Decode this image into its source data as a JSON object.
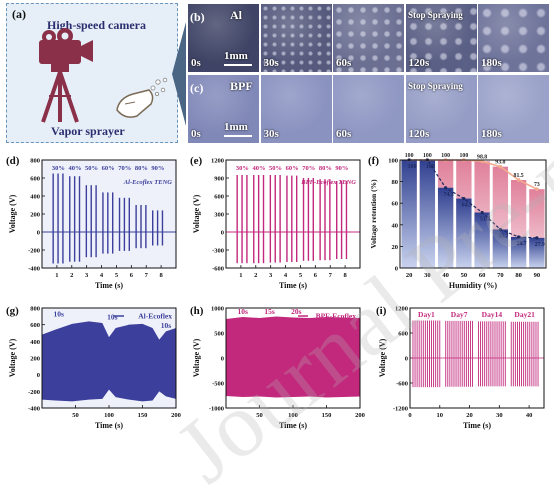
{
  "panel_a": {
    "letter": "(a)",
    "camera_label": "High-speed camera",
    "sprayer_label": "Vapor sprayer"
  },
  "panel_b": {
    "letter": "(b)",
    "material": "Al",
    "scale": "1mm",
    "stop_label": "Stop Spraying",
    "times": [
      "0s",
      "30s",
      "60s",
      "120s",
      "180s"
    ]
  },
  "panel_c": {
    "letter": "(c)",
    "material": "BPF",
    "scale": "1mm",
    "stop_label": "Stop Spraying",
    "times": [
      "0s",
      "30s",
      "60s",
      "120s",
      "180s"
    ]
  },
  "colors": {
    "blue": "#3c3f9b",
    "magenta": "#c2287c",
    "bar_red": "#d8708c",
    "retention_line": "#f3a98d"
  },
  "chart_data": [
    {
      "id": "d",
      "letter": "(d)",
      "type": "line",
      "legend": "Al-Ecoflex TENG",
      "xlabel": "Time (s)",
      "ylabel": "Voltage (V)",
      "xlim": [
        0,
        9
      ],
      "ylim": [
        -400,
        800
      ],
      "xticks": [
        "1",
        "2",
        "3",
        "4",
        "5",
        "6",
        "7",
        "8"
      ],
      "yticks": [
        "800",
        "600",
        "400",
        "200",
        "0",
        "-200",
        "-400"
      ],
      "humidity_labels": [
        "30%",
        "40%",
        "50%",
        "60%",
        "70%",
        "80%",
        "90%"
      ],
      "group_peaks": [
        650,
        620,
        520,
        440,
        380,
        300,
        240
      ],
      "group_troughs": [
        -350,
        -330,
        -280,
        -240,
        -210,
        -180,
        -150
      ]
    },
    {
      "id": "e",
      "letter": "(e)",
      "type": "line",
      "legend": "BPF-Ecoflex TENG",
      "xlabel": "Time (s)",
      "ylabel": "Voltage (V)",
      "xlim": [
        0,
        9
      ],
      "ylim": [
        -600,
        1200
      ],
      "xticks": [
        "1",
        "2",
        "3",
        "4",
        "5",
        "6",
        "7",
        "8"
      ],
      "yticks": [
        "1200",
        "900",
        "600",
        "300",
        "0",
        "-300",
        "-600"
      ],
      "humidity_labels": [
        "30%",
        "40%",
        "50%",
        "60%",
        "70%",
        "80%",
        "90%"
      ],
      "group_peaks": [
        950,
        950,
        950,
        940,
        900,
        880,
        850
      ],
      "group_troughs": [
        -520,
        -520,
        -510,
        -500,
        -480,
        -470,
        -450
      ]
    },
    {
      "id": "f",
      "letter": "(f)",
      "type": "bar",
      "xlabel": "Humidity (%)",
      "ylabel": "Voltage retention (%)",
      "ylim": [
        0,
        100
      ],
      "categories": [
        "20",
        "30",
        "40",
        "50",
        "60",
        "70",
        "80",
        "90"
      ],
      "yticks": [
        "100",
        "80",
        "60",
        "40",
        "20",
        "0"
      ],
      "series": [
        {
          "values": [
            100,
            100,
            100,
            100,
            98.8,
            93.8,
            81.5,
            73
          ]
        },
        {
          "values": [
            100,
            100,
            74.3,
            64.3,
            51.4,
            35.7,
            28.7,
            27.9
          ]
        }
      ],
      "data_labels_red": [
        "100",
        "100",
        "100",
        "100",
        "98.8",
        "93.8",
        "81.5",
        "73"
      ],
      "data_labels_blue": [
        "100",
        "100",
        "74.3",
        "64.3",
        "51.4",
        "35.7",
        "28.7",
        "27.9"
      ]
    },
    {
      "id": "g",
      "letter": "(g)",
      "type": "area",
      "legend": "Al-Ecoflex",
      "xlabel": "Time (s)",
      "ylabel": "Voltage (V)",
      "xlim": [
        0,
        200
      ],
      "ylim": [
        -400,
        800
      ],
      "xticks": [
        "50",
        "100",
        "150",
        "200"
      ],
      "yticks": [
        "800",
        "600",
        "400",
        "200",
        "0",
        "-200",
        "-400"
      ],
      "annotations": [
        "10s",
        "10s",
        "10s"
      ],
      "envelope_x": [
        0,
        20,
        45,
        70,
        90,
        100,
        110,
        130,
        150,
        165,
        175,
        185,
        200
      ],
      "envelope_top": [
        480,
        540,
        610,
        640,
        620,
        450,
        560,
        600,
        610,
        560,
        420,
        520,
        560
      ],
      "envelope_bottom": [
        -300,
        -310,
        -320,
        -300,
        -290,
        -180,
        -270,
        -300,
        -320,
        -310,
        -200,
        -260,
        -290
      ]
    },
    {
      "id": "h",
      "letter": "(h)",
      "type": "area",
      "legend": "BPF-Ecoflex",
      "xlabel": "Time (s)",
      "ylabel": "Voltage (V)",
      "xlim": [
        0,
        200
      ],
      "ylim": [
        -1000,
        1000
      ],
      "xticks": [
        "50",
        "100",
        "150",
        "200"
      ],
      "yticks": [
        "1000",
        "500",
        "0",
        "-500",
        "-1000"
      ],
      "annotations": [
        "10s",
        "15s",
        "20s"
      ],
      "envelope_x": [
        0,
        25,
        50,
        75,
        100,
        125,
        150,
        175,
        200
      ],
      "envelope_top": [
        780,
        820,
        800,
        830,
        810,
        800,
        820,
        810,
        800
      ],
      "envelope_bottom": [
        -760,
        -780,
        -770,
        -790,
        -780,
        -770,
        -790,
        -780,
        -770
      ]
    },
    {
      "id": "i",
      "letter": "(i)",
      "type": "line",
      "xlabel": "Time (s)",
      "ylabel": "Voltage (V)",
      "xlim": [
        0,
        45
      ],
      "ylim": [
        -1200,
        1200
      ],
      "xticks": [
        "0",
        "10",
        "20",
        "30",
        "40"
      ],
      "yticks": [
        "1200",
        "600",
        "0",
        "-600",
        "-1200"
      ],
      "day_labels": [
        "Day1",
        "Day7",
        "Day14",
        "Day21"
      ],
      "segment_peaks": [
        900,
        890,
        880,
        870
      ],
      "segment_troughs": [
        -700,
        -690,
        -680,
        -680
      ]
    }
  ]
}
